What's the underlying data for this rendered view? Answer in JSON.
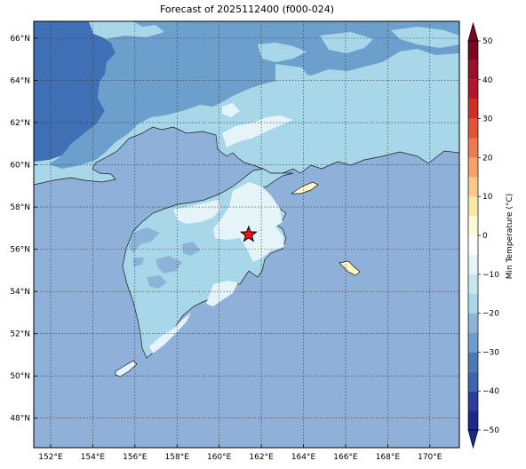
{
  "title": "Forecast of 2025112400 (f000-024)",
  "map": {
    "lon_range": [
      151.2,
      171.4
    ],
    "lat_range": [
      46.6,
      66.8
    ],
    "lon_ticks": [
      "152°E",
      "154°E",
      "156°E",
      "158°E",
      "160°E",
      "162°E",
      "164°E",
      "166°E",
      "168°E",
      "170°E"
    ],
    "lon_values": [
      152,
      154,
      156,
      158,
      160,
      162,
      164,
      166,
      168,
      170
    ],
    "lat_ticks": [
      "48°N",
      "50°N",
      "52°N",
      "54°N",
      "56°N",
      "58°N",
      "60°N",
      "62°N",
      "64°N",
      "66°N"
    ],
    "lat_values": [
      48,
      50,
      52,
      54,
      56,
      58,
      60,
      62,
      64,
      66
    ],
    "gridlines": true,
    "marker": {
      "label": "red-star",
      "lon": 161.4,
      "lat": 56.7,
      "color": "#e8141c"
    }
  },
  "colorbar": {
    "label": "Min Temperature (°C)",
    "ticks": [
      "−50",
      "−40",
      "−30",
      "−20",
      "−10",
      "0",
      "10",
      "20",
      "30",
      "40",
      "50"
    ],
    "bands": [
      {
        "from": -50,
        "to": -45,
        "color": "#1b2a8a"
      },
      {
        "from": -45,
        "to": -40,
        "color": "#2b3ea0"
      },
      {
        "from": -40,
        "to": -35,
        "color": "#3f63ad"
      },
      {
        "from": -35,
        "to": -30,
        "color": "#4a79b8"
      },
      {
        "from": -30,
        "to": -25,
        "color": "#6d9fcc"
      },
      {
        "from": -25,
        "to": -20,
        "color": "#8eb3d8"
      },
      {
        "from": -20,
        "to": -15,
        "color": "#a7d7e8"
      },
      {
        "from": -15,
        "to": -10,
        "color": "#c6e6f0"
      },
      {
        "from": -10,
        "to": -5,
        "color": "#e4f4f8"
      },
      {
        "from": -5,
        "to": 0,
        "color": "#ffffff"
      },
      {
        "from": 0,
        "to": 5,
        "color": "#fdfbd4"
      },
      {
        "from": 5,
        "to": 10,
        "color": "#fce8a6"
      },
      {
        "from": 10,
        "to": 15,
        "color": "#fbc989"
      },
      {
        "from": 15,
        "to": 20,
        "color": "#f6a06b"
      },
      {
        "from": 20,
        "to": 25,
        "color": "#ee7a52"
      },
      {
        "from": 25,
        "to": 30,
        "color": "#e05538"
      },
      {
        "from": 30,
        "to": 35,
        "color": "#cf2d28"
      },
      {
        "from": 35,
        "to": 40,
        "color": "#b3152a"
      },
      {
        "from": 40,
        "to": 45,
        "color": "#98102a"
      },
      {
        "from": 45,
        "to": 50,
        "color": "#7a0622"
      }
    ]
  },
  "colors": {
    "ocean": "#8fb0d8",
    "land_cold": "#a7d7e8",
    "land_very_cold": "#6d9fcc",
    "land_coldest": "#3f6fb5",
    "land_mild": "#e4f4f8",
    "land_warm": "#fdf6c0"
  }
}
